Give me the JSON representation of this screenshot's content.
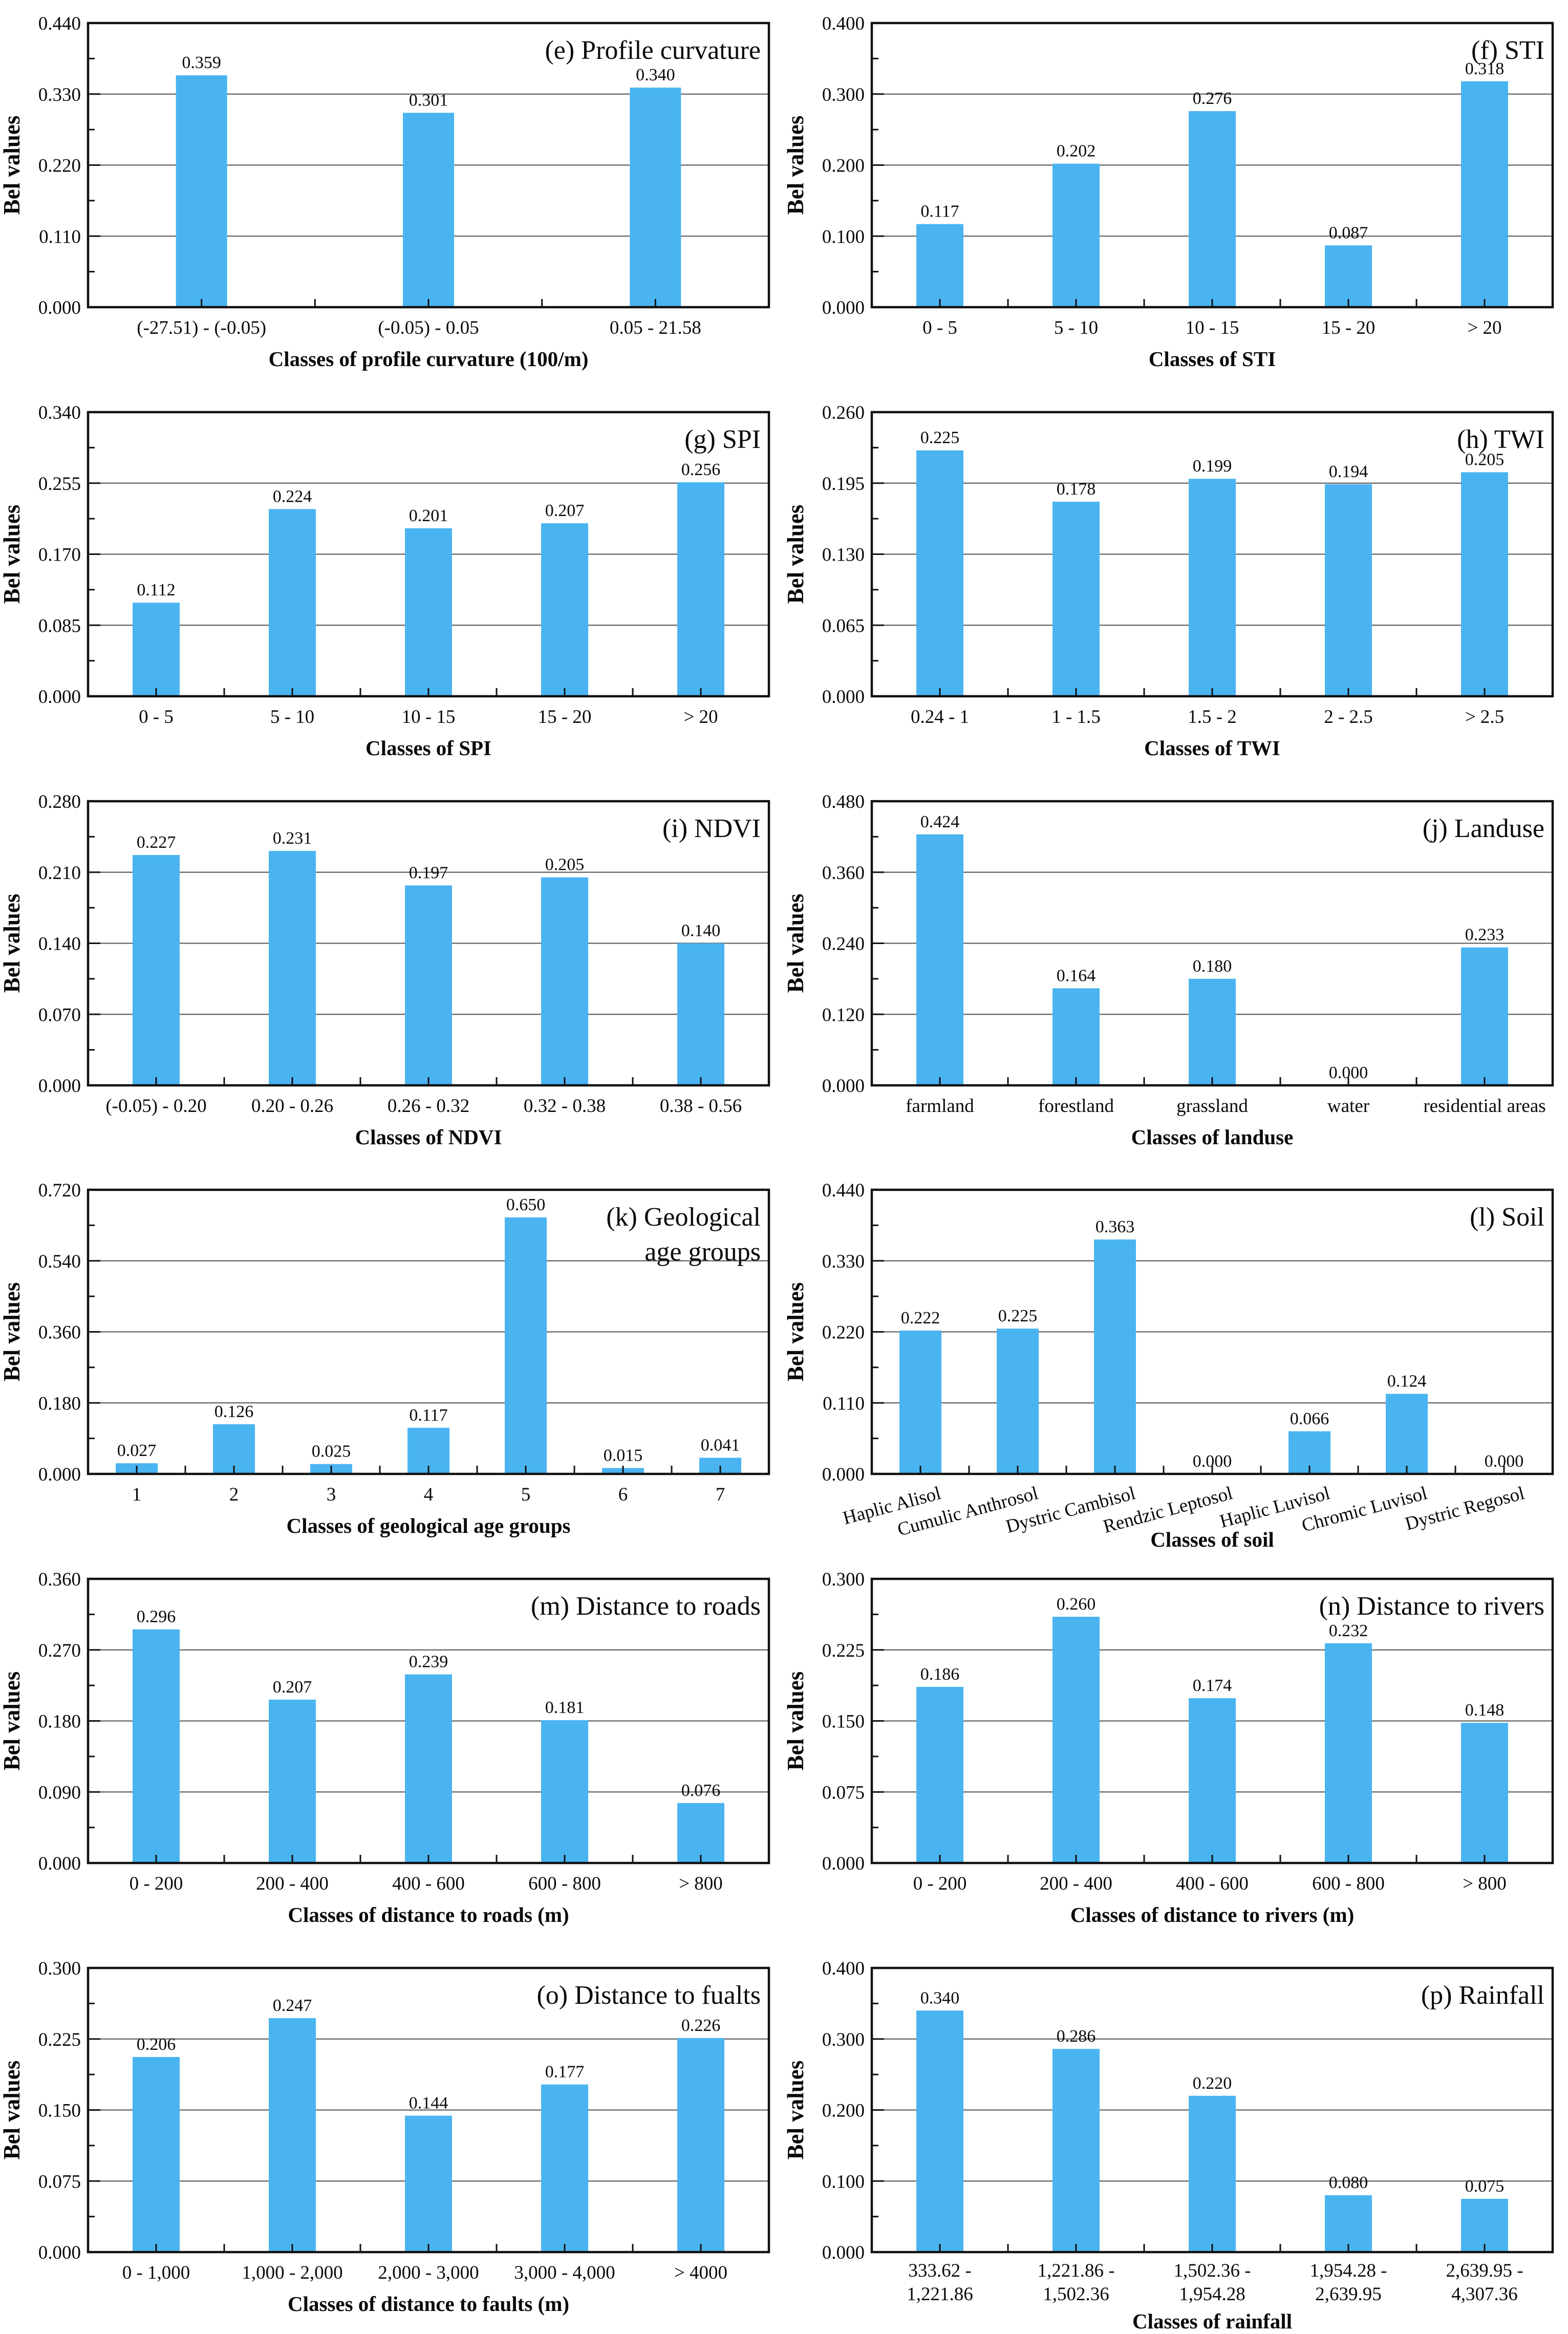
{
  "figure": {
    "description": "Panel of twelve bar charts of Bel values for landslide conditioning factor classes",
    "panels": [
      "e",
      "f",
      "g",
      "h",
      "i",
      "j",
      "k",
      "l",
      "m",
      "n",
      "o",
      "p"
    ]
  },
  "style": {
    "bar_color": "#4ab4f1",
    "grid_color": "#616161",
    "frame_color": "#111111",
    "text_color": "#0a0a0a",
    "background": "#ffffff"
  },
  "chart_data": [
    {
      "id": "e",
      "type": "bar",
      "title_lines": [
        "(e) Profile curvature"
      ],
      "ylabel": "Bel values",
      "xlabel": "Classes of profile curvature (100/m)",
      "ylim": [
        0,
        0.44
      ],
      "yticks": [
        0.0,
        0.11,
        0.22,
        0.33,
        0.44
      ],
      "categories": [
        "(-27.51) - (-0.05)",
        "(-0.05) - 0.05",
        "0.05 - 21.58"
      ],
      "values": [
        0.359,
        0.301,
        0.34
      ],
      "xtick_style": "normal",
      "grid": true,
      "legend": null
    },
    {
      "id": "f",
      "type": "bar",
      "title_lines": [
        "(f) STI"
      ],
      "ylabel": "Bel values",
      "xlabel": "Classes of STI",
      "ylim": [
        0,
        0.4
      ],
      "yticks": [
        0.0,
        0.1,
        0.2,
        0.3,
        0.4
      ],
      "categories": [
        "0 - 5",
        "5 - 10",
        "10 - 15",
        "15 - 20",
        "> 20"
      ],
      "values": [
        0.117,
        0.202,
        0.276,
        0.087,
        0.318
      ],
      "xtick_style": "normal",
      "grid": true,
      "legend": null
    },
    {
      "id": "g",
      "type": "bar",
      "title_lines": [
        "(g) SPI"
      ],
      "ylabel": "Bel values",
      "xlabel": "Classes of SPI",
      "ylim": [
        0,
        0.34
      ],
      "yticks": [
        0.0,
        0.085,
        0.17,
        0.255,
        0.34
      ],
      "categories": [
        "0 - 5",
        "5 - 10",
        "10 - 15",
        "15 - 20",
        "> 20"
      ],
      "values": [
        0.112,
        0.224,
        0.201,
        0.207,
        0.256
      ],
      "xtick_style": "normal",
      "grid": true,
      "legend": null
    },
    {
      "id": "h",
      "type": "bar",
      "title_lines": [
        "(h) TWI"
      ],
      "ylabel": "Bel values",
      "xlabel": "Classes of TWI",
      "ylim": [
        0,
        0.26
      ],
      "yticks": [
        0.0,
        0.065,
        0.13,
        0.195,
        0.26
      ],
      "categories": [
        "0.24 - 1",
        "1 - 1.5",
        "1.5 - 2",
        "2 - 2.5",
        "> 2.5"
      ],
      "values": [
        0.225,
        0.178,
        0.199,
        0.194,
        0.205
      ],
      "xtick_style": "normal",
      "grid": true,
      "legend": null
    },
    {
      "id": "i",
      "type": "bar",
      "title_lines": [
        "(i) NDVI"
      ],
      "ylabel": "Bel values",
      "xlabel": "Classes of NDVI",
      "ylim": [
        0,
        0.28
      ],
      "yticks": [
        0.0,
        0.07,
        0.14,
        0.21,
        0.28
      ],
      "categories": [
        "(-0.05) - 0.20",
        "0.20 - 0.26",
        "0.26 - 0.32",
        "0.32 - 0.38",
        "0.38 - 0.56"
      ],
      "values": [
        0.227,
        0.231,
        0.197,
        0.205,
        0.14
      ],
      "xtick_style": "normal",
      "grid": true,
      "legend": null
    },
    {
      "id": "j",
      "type": "bar",
      "title_lines": [
        "(j) Landuse"
      ],
      "ylabel": "Bel values",
      "xlabel": "Classes of landuse",
      "ylim": [
        0,
        0.48
      ],
      "yticks": [
        0.0,
        0.12,
        0.24,
        0.36,
        0.48
      ],
      "categories": [
        "farmland",
        "forestland",
        "grassland",
        "water",
        "residential areas"
      ],
      "values": [
        0.424,
        0.164,
        0.18,
        0.0,
        0.233
      ],
      "xtick_style": "normal",
      "grid": true,
      "legend": null
    },
    {
      "id": "k",
      "type": "bar",
      "title_lines": [
        "(k) Geological",
        "age groups"
      ],
      "ylabel": "Bel values",
      "xlabel": "Classes of geological age groups",
      "ylim": [
        0,
        0.72
      ],
      "yticks": [
        0.0,
        0.18,
        0.36,
        0.54,
        0.72
      ],
      "categories": [
        "1",
        "2",
        "3",
        "4",
        "5",
        "6",
        "7"
      ],
      "values": [
        0.027,
        0.126,
        0.025,
        0.117,
        0.65,
        0.015,
        0.041
      ],
      "xtick_style": "normal",
      "grid": true,
      "legend": null
    },
    {
      "id": "l",
      "type": "bar",
      "title_lines": [
        "(l) Soil"
      ],
      "ylabel": "Bel values",
      "xlabel": "Classes of soil",
      "ylim": [
        0,
        0.44
      ],
      "yticks": [
        0.0,
        0.11,
        0.22,
        0.33,
        0.44
      ],
      "categories": [
        "Haplic Alisol",
        "Cumulic Anthrosol",
        "Dystric Cambisol",
        "Rendzic Leptosol",
        "Haplic Luvisol",
        "Chromic Luvisol",
        "Dystric Regosol"
      ],
      "values": [
        0.222,
        0.225,
        0.363,
        0.0,
        0.066,
        0.124,
        0.0
      ],
      "xtick_style": "rotated",
      "grid": true,
      "legend": null
    },
    {
      "id": "m",
      "type": "bar",
      "title_lines": [
        "(m) Distance to roads"
      ],
      "ylabel": "Bel values",
      "xlabel": "Classes of distance to roads (m)",
      "ylim": [
        0,
        0.36
      ],
      "yticks": [
        0.0,
        0.09,
        0.18,
        0.27,
        0.36
      ],
      "categories": [
        "0 - 200",
        "200 - 400",
        "400 - 600",
        "600 - 800",
        "> 800"
      ],
      "values": [
        0.296,
        0.207,
        0.239,
        0.181,
        0.076
      ],
      "xtick_style": "normal",
      "grid": true,
      "legend": null
    },
    {
      "id": "n",
      "type": "bar",
      "title_lines": [
        "(n) Distance to rivers"
      ],
      "ylabel": "Bel values",
      "xlabel": "Classes of distance to rivers (m)",
      "ylim": [
        0,
        0.3
      ],
      "yticks": [
        0.0,
        0.075,
        0.15,
        0.225,
        0.3
      ],
      "categories": [
        "0 - 200",
        "200 - 400",
        "400 - 600",
        "600 - 800",
        "> 800"
      ],
      "values": [
        0.186,
        0.26,
        0.174,
        0.232,
        0.148
      ],
      "xtick_style": "normal",
      "grid": true,
      "legend": null
    },
    {
      "id": "o",
      "type": "bar",
      "title_lines": [
        "(o) Distance to fualts"
      ],
      "ylabel": "Bel values",
      "xlabel": "Classes of distance to faults (m)",
      "ylim": [
        0,
        0.3
      ],
      "yticks": [
        0.0,
        0.075,
        0.15,
        0.225,
        0.3
      ],
      "categories": [
        "0 - 1,000",
        "1,000 - 2,000",
        "2,000 - 3,000",
        "3,000 - 4,000",
        "> 4000"
      ],
      "values": [
        0.206,
        0.247,
        0.144,
        0.177,
        0.226
      ],
      "xtick_style": "normal",
      "grid": true,
      "legend": null
    },
    {
      "id": "p",
      "type": "bar",
      "title_lines": [
        "(p) Rainfall"
      ],
      "ylabel": "Bel values",
      "xlabel": "Classes of rainfall",
      "ylim": [
        0,
        0.4
      ],
      "yticks": [
        0.0,
        0.1,
        0.2,
        0.3,
        0.4
      ],
      "categories": [
        [
          "333.62 -",
          "1,221.86"
        ],
        [
          "1,221.86 -",
          "1,502.36"
        ],
        [
          "1,502.36 -",
          "1,954.28"
        ],
        [
          "1,954.28 -",
          "2,639.95"
        ],
        [
          "2,639.95 -",
          "4,307.36"
        ]
      ],
      "values": [
        0.34,
        0.286,
        0.22,
        0.08,
        0.075
      ],
      "xtick_style": "twoline",
      "grid": true,
      "legend": null
    }
  ]
}
